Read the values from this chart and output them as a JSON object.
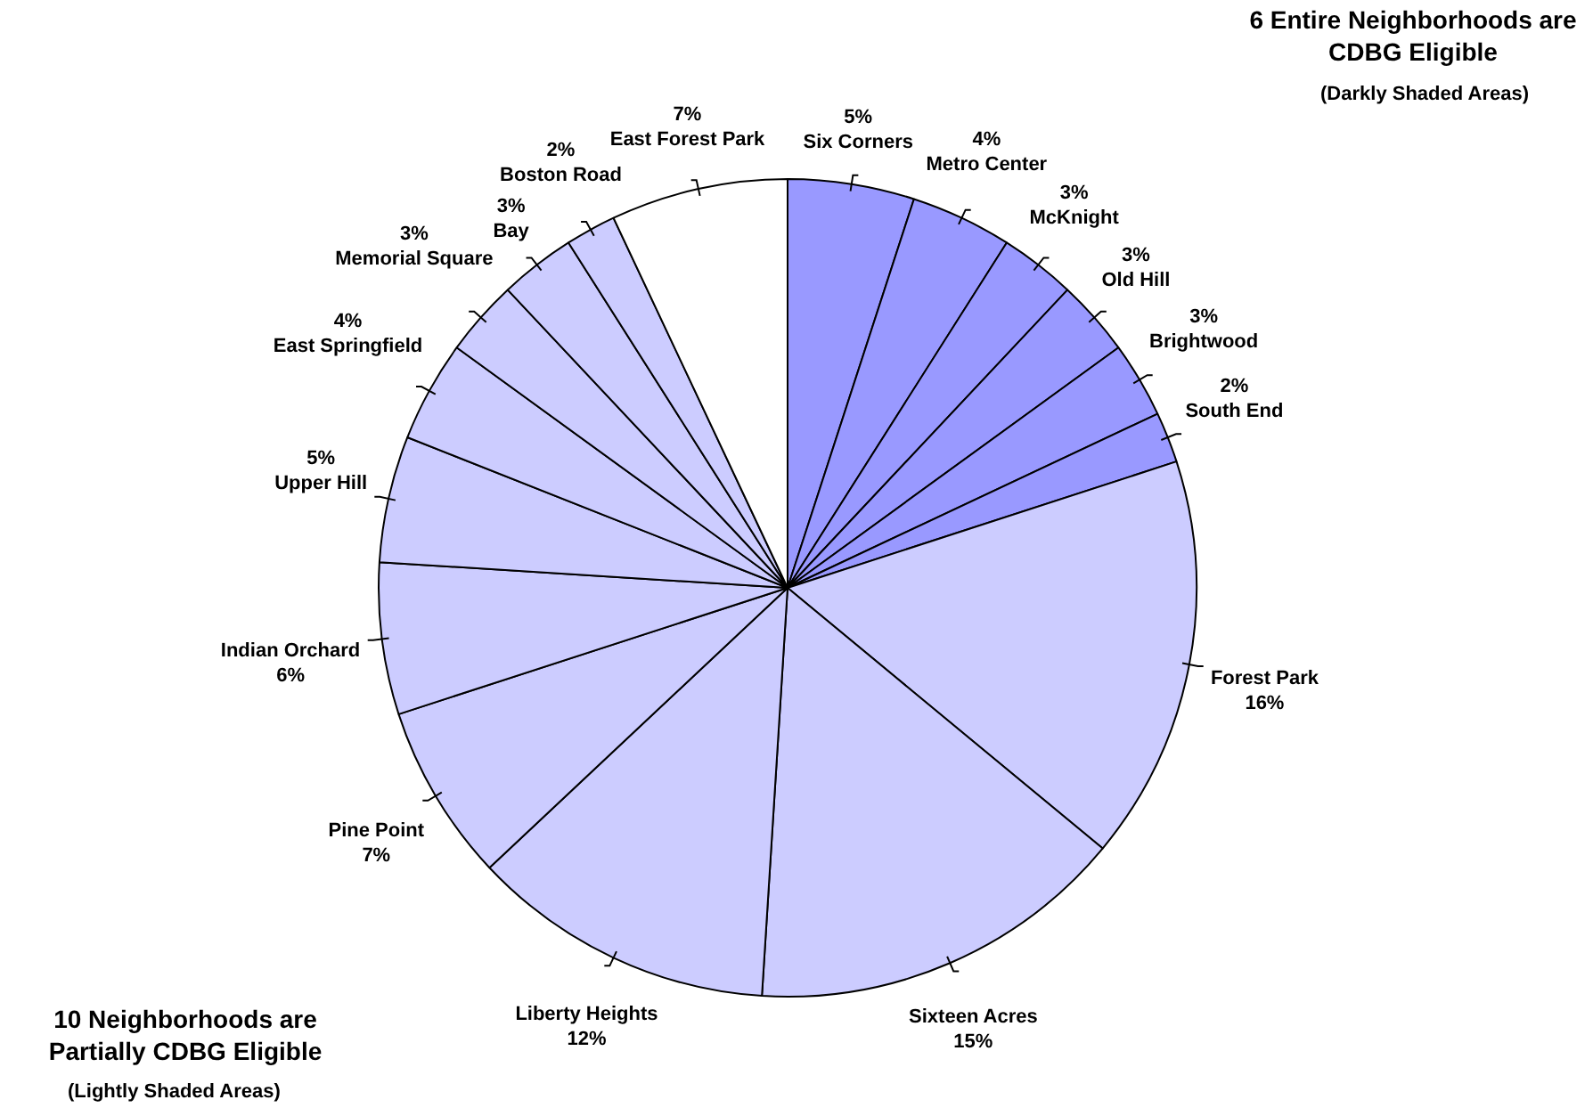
{
  "chart_data": {
    "type": "pie",
    "categories": [
      "Six Corners",
      "Metro Center",
      "McKnight",
      "Old Hill",
      "Brightwood",
      "South End",
      "Forest Park",
      "Sixteen Acres",
      "Liberty Heights",
      "Pine Point",
      "Indian Orchard",
      "Upper Hill",
      "East Springfield",
      "Memorial Square",
      "Bay",
      "Boston Road",
      "East Forest Park"
    ],
    "values": [
      5,
      4,
      3,
      3,
      3,
      2,
      16,
      15,
      12,
      7,
      6,
      5,
      4,
      3,
      3,
      2,
      7
    ],
    "value_labels": [
      "5%",
      "4%",
      "3%",
      "3%",
      "3%",
      "2%",
      "16%",
      "15%",
      "12%",
      "7%",
      "6%",
      "5%",
      "4%",
      "3%",
      "3%",
      "2%",
      "7%"
    ],
    "colors": [
      "#9999ff",
      "#9999ff",
      "#9999ff",
      "#9999ff",
      "#9999ff",
      "#9999ff",
      "#ccccff",
      "#ccccff",
      "#ccccff",
      "#ccccff",
      "#ccccff",
      "#ccccff",
      "#ccccff",
      "#ccccff",
      "#ccccff",
      "#ccccff",
      "#ffffff"
    ],
    "annotations": [
      "6 Entire Neighborhoods are CDBG Eligible",
      "(Darkly Shaded Areas)",
      "10 Neighborhoods are Partially CDBG Eligible",
      "(Lightly Shaded Areas)"
    ],
    "legend": false
  }
}
